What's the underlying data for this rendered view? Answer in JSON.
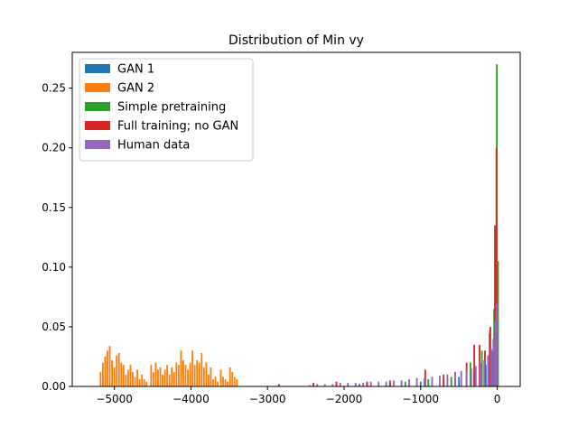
{
  "chart_data": {
    "type": "bar",
    "title": "Distribution of Min vy",
    "xlabel": "",
    "ylabel": "",
    "xlim": [
      -5550,
      300
    ],
    "ylim": [
      0,
      0.28
    ],
    "x_ticks": [
      -5000,
      -4000,
      -3000,
      -2000,
      -1000,
      0
    ],
    "x_tick_labels": [
      "−5000",
      "−4000",
      "−3000",
      "−2000",
      "−1000",
      "0"
    ],
    "y_ticks": [
      0.0,
      0.05,
      0.1,
      0.15,
      0.2,
      0.25
    ],
    "y_tick_labels": [
      "0.00",
      "0.05",
      "0.10",
      "0.15",
      "0.20",
      "0.25"
    ],
    "grid": false,
    "legend_position": "top-left",
    "bin_width": 22,
    "series": [
      {
        "name": "GAN 1",
        "color": "#1f77b4",
        "bins": [
          {
            "x": -1800,
            "y": 0.002
          },
          {
            "x": -1400,
            "y": 0.003
          },
          {
            "x": -1000,
            "y": 0.004
          },
          {
            "x": -700,
            "y": 0.006
          },
          {
            "x": -500,
            "y": 0.008
          },
          {
            "x": -300,
            "y": 0.012
          },
          {
            "x": -150,
            "y": 0.018
          },
          {
            "x": -60,
            "y": 0.03
          },
          {
            "x": -20,
            "y": 0.05
          }
        ]
      },
      {
        "name": "GAN 2",
        "color": "#ff7f0e",
        "bins": [
          {
            "x": -5180,
            "y": 0.012
          },
          {
            "x": -5150,
            "y": 0.02
          },
          {
            "x": -5120,
            "y": 0.025
          },
          {
            "x": -5090,
            "y": 0.03
          },
          {
            "x": -5060,
            "y": 0.034
          },
          {
            "x": -5030,
            "y": 0.022
          },
          {
            "x": -5000,
            "y": 0.016
          },
          {
            "x": -4970,
            "y": 0.026
          },
          {
            "x": -4940,
            "y": 0.028
          },
          {
            "x": -4910,
            "y": 0.02
          },
          {
            "x": -4880,
            "y": 0.018
          },
          {
            "x": -4850,
            "y": 0.01
          },
          {
            "x": -4820,
            "y": 0.014
          },
          {
            "x": -4790,
            "y": 0.018
          },
          {
            "x": -4760,
            "y": 0.012
          },
          {
            "x": -4730,
            "y": 0.008
          },
          {
            "x": -4700,
            "y": 0.014
          },
          {
            "x": -4670,
            "y": 0.006
          },
          {
            "x": -4640,
            "y": 0.01
          },
          {
            "x": -4610,
            "y": 0.006
          },
          {
            "x": -4580,
            "y": 0.004
          },
          {
            "x": -4520,
            "y": 0.018
          },
          {
            "x": -4490,
            "y": 0.012
          },
          {
            "x": -4460,
            "y": 0.02
          },
          {
            "x": -4430,
            "y": 0.014
          },
          {
            "x": -4400,
            "y": 0.016
          },
          {
            "x": -4370,
            "y": 0.01
          },
          {
            "x": -4340,
            "y": 0.014
          },
          {
            "x": -4310,
            "y": 0.018
          },
          {
            "x": -4280,
            "y": 0.01
          },
          {
            "x": -4250,
            "y": 0.016
          },
          {
            "x": -4220,
            "y": 0.012
          },
          {
            "x": -4190,
            "y": 0.02
          },
          {
            "x": -4160,
            "y": 0.018
          },
          {
            "x": -4130,
            "y": 0.03
          },
          {
            "x": -4100,
            "y": 0.022
          },
          {
            "x": -4070,
            "y": 0.018
          },
          {
            "x": -4040,
            "y": 0.014
          },
          {
            "x": -4010,
            "y": 0.02
          },
          {
            "x": -3980,
            "y": 0.03
          },
          {
            "x": -3950,
            "y": 0.018
          },
          {
            "x": -3920,
            "y": 0.022
          },
          {
            "x": -3890,
            "y": 0.02
          },
          {
            "x": -3860,
            "y": 0.028
          },
          {
            "x": -3830,
            "y": 0.016
          },
          {
            "x": -3800,
            "y": 0.02
          },
          {
            "x": -3770,
            "y": 0.01
          },
          {
            "x": -3740,
            "y": 0.016
          },
          {
            "x": -3710,
            "y": 0.006
          },
          {
            "x": -3680,
            "y": 0.008
          },
          {
            "x": -3650,
            "y": 0.004
          },
          {
            "x": -3610,
            "y": 0.014
          },
          {
            "x": -3580,
            "y": 0.008
          },
          {
            "x": -3550,
            "y": 0.006
          },
          {
            "x": -3520,
            "y": 0.004
          },
          {
            "x": -3490,
            "y": 0.016
          },
          {
            "x": -3460,
            "y": 0.012
          },
          {
            "x": -3430,
            "y": 0.008
          },
          {
            "x": -3400,
            "y": 0.006
          }
        ]
      },
      {
        "name": "Simple pretraining",
        "color": "#2ca02c",
        "bins": [
          {
            "x": -1700,
            "y": 0.003
          },
          {
            "x": -1200,
            "y": 0.004
          },
          {
            "x": -900,
            "y": 0.006
          },
          {
            "x": -600,
            "y": 0.008
          },
          {
            "x": -350,
            "y": 0.02
          },
          {
            "x": -200,
            "y": 0.03
          },
          {
            "x": -100,
            "y": 0.045
          },
          {
            "x": -40,
            "y": 0.065
          },
          {
            "x": -5,
            "y": 0.27
          },
          {
            "x": 10,
            "y": 0.105
          }
        ]
      },
      {
        "name": "Full training; no GAN",
        "color": "#d62728",
        "bins": [
          {
            "x": -2850,
            "y": 0.002
          },
          {
            "x": -2400,
            "y": 0.003
          },
          {
            "x": -2100,
            "y": 0.004
          },
          {
            "x": -1700,
            "y": 0.004
          },
          {
            "x": -1400,
            "y": 0.005
          },
          {
            "x": -1150,
            "y": 0.006
          },
          {
            "x": -940,
            "y": 0.014
          },
          {
            "x": -700,
            "y": 0.01
          },
          {
            "x": -550,
            "y": 0.012
          },
          {
            "x": -400,
            "y": 0.02
          },
          {
            "x": -300,
            "y": 0.035
          },
          {
            "x": -230,
            "y": 0.035
          },
          {
            "x": -160,
            "y": 0.03
          },
          {
            "x": -90,
            "y": 0.05
          },
          {
            "x": -30,
            "y": 0.135
          },
          {
            "x": -10,
            "y": 0.2
          }
        ]
      },
      {
        "name": "Human data",
        "color": "#9467bd",
        "bins": [
          {
            "x": -2450,
            "y": 0.001
          },
          {
            "x": -2350,
            "y": 0.002
          },
          {
            "x": -2250,
            "y": 0.002
          },
          {
            "x": -2150,
            "y": 0.002
          },
          {
            "x": -2050,
            "y": 0.003
          },
          {
            "x": -1950,
            "y": 0.003
          },
          {
            "x": -1850,
            "y": 0.003
          },
          {
            "x": -1750,
            "y": 0.003
          },
          {
            "x": -1650,
            "y": 0.004
          },
          {
            "x": -1550,
            "y": 0.004
          },
          {
            "x": -1450,
            "y": 0.004
          },
          {
            "x": -1350,
            "y": 0.005
          },
          {
            "x": -1250,
            "y": 0.005
          },
          {
            "x": -1150,
            "y": 0.006
          },
          {
            "x": -1050,
            "y": 0.007
          },
          {
            "x": -950,
            "y": 0.007
          },
          {
            "x": -850,
            "y": 0.008
          },
          {
            "x": -750,
            "y": 0.009
          },
          {
            "x": -650,
            "y": 0.01
          },
          {
            "x": -550,
            "y": 0.011
          },
          {
            "x": -470,
            "y": 0.013
          },
          {
            "x": -400,
            "y": 0.014
          },
          {
            "x": -340,
            "y": 0.015
          },
          {
            "x": -280,
            "y": 0.017
          },
          {
            "x": -220,
            "y": 0.02
          },
          {
            "x": -170,
            "y": 0.022
          },
          {
            "x": -120,
            "y": 0.026
          },
          {
            "x": -80,
            "y": 0.032
          },
          {
            "x": -50,
            "y": 0.04
          },
          {
            "x": -25,
            "y": 0.055
          },
          {
            "x": -8,
            "y": 0.07
          }
        ]
      }
    ]
  }
}
